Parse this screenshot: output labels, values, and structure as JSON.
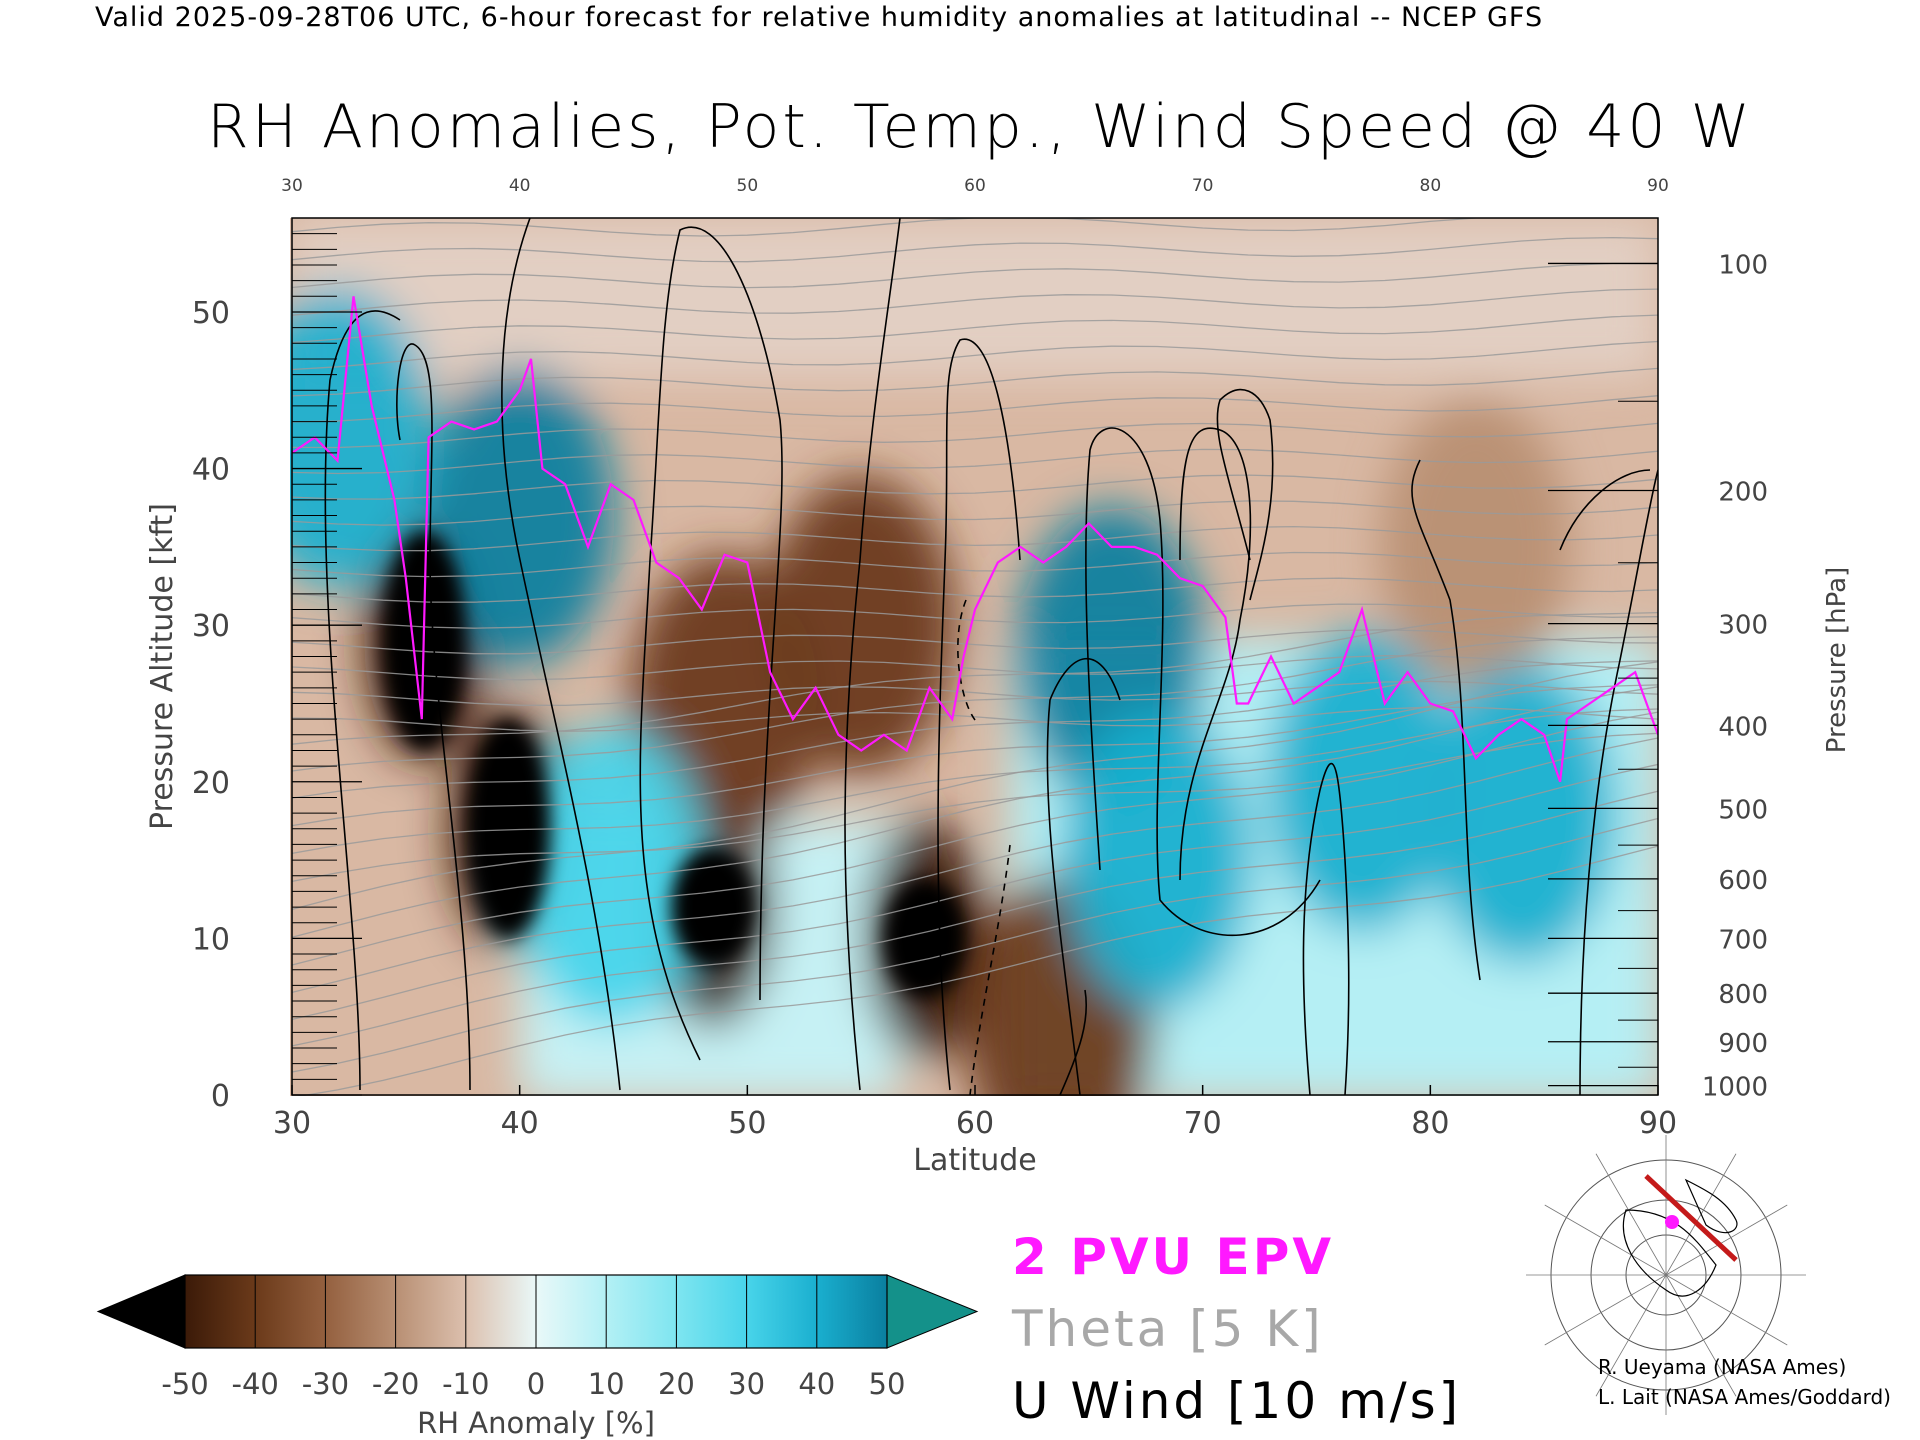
{
  "caption": "Valid 2025-09-28T06 UTC, 6-hour forecast for relative humidity anomalies at latitudinal -- NCEP GFS",
  "title": "RH Anomalies, Pot. Temp., Wind Speed @ 40 W",
  "legend": {
    "epv": "2 PVU EPV",
    "theta": "Theta [5 K]",
    "wind": "U Wind [10 m/s]",
    "colors": {
      "epv": "#ff19ff",
      "theta": "#a8a8a8",
      "wind": "#000000"
    }
  },
  "colorbar": {
    "label": "RH Anomaly [%]",
    "ticks": [
      "-50",
      "-40",
      "-30",
      "-20",
      "-10",
      "0",
      "10",
      "20",
      "30",
      "40",
      "50"
    ],
    "colors": [
      "#000000",
      "#3b1a08",
      "#6b3a1a",
      "#94603f",
      "#b88f73",
      "#dcc0ae",
      "#e9f8f8",
      "#b3f0f5",
      "#7ee5f0",
      "#48d4ea",
      "#1aafcf",
      "#0a7f9f",
      "#14918a"
    ]
  },
  "credits": [
    "R. Ueyama (NASA Ames)",
    "L. Lait (NASA Ames/Goddard)"
  ],
  "chart_data": {
    "type": "heatmap",
    "xlabel": "Latitude",
    "ylabel_left": "Pressure Altitude [kft]",
    "ylabel_right": "Pressure [hPa]",
    "xlim": [
      30,
      90
    ],
    "ylim": [
      0,
      56
    ],
    "x_ticks": [
      "30",
      "40",
      "50",
      "60",
      "70",
      "80",
      "90"
    ],
    "x_tick_values": [
      30,
      40,
      50,
      60,
      70,
      80,
      90
    ],
    "y_ticks": [
      "0",
      "10",
      "20",
      "30",
      "40",
      "50"
    ],
    "y_tick_values": [
      0,
      10,
      20,
      30,
      40,
      50
    ],
    "pressure_ticks": [
      "100",
      "200",
      "300",
      "400",
      "500",
      "600",
      "700",
      "800",
      "900",
      "1000"
    ],
    "pressure_tick_alt_kft": [
      53.1,
      38.6,
      30.1,
      23.6,
      18.3,
      13.8,
      10.0,
      6.5,
      3.4,
      0.6
    ],
    "epv_2pvu_line": [
      [
        30,
        41
      ],
      [
        31,
        42
      ],
      [
        32,
        40.5
      ],
      [
        32.7,
        51
      ],
      [
        33.5,
        44
      ],
      [
        34.5,
        38
      ],
      [
        35,
        33
      ],
      [
        35.7,
        24
      ],
      [
        36,
        42
      ],
      [
        37,
        43
      ],
      [
        38,
        42.5
      ],
      [
        39,
        43
      ],
      [
        40,
        45
      ],
      [
        40.5,
        47
      ],
      [
        41,
        40
      ],
      [
        42,
        39
      ],
      [
        43,
        35
      ],
      [
        44,
        39
      ],
      [
        45,
        38
      ],
      [
        46,
        34
      ],
      [
        47,
        33
      ],
      [
        48,
        31
      ],
      [
        49,
        34.5
      ],
      [
        50,
        34
      ],
      [
        51,
        27
      ],
      [
        52,
        24
      ],
      [
        53,
        26
      ],
      [
        54,
        23
      ],
      [
        55,
        22
      ],
      [
        56,
        23
      ],
      [
        57,
        22
      ],
      [
        58,
        26
      ],
      [
        59,
        24
      ],
      [
        59.5,
        28
      ],
      [
        60,
        31
      ],
      [
        61,
        34
      ],
      [
        62,
        35
      ],
      [
        63,
        34
      ],
      [
        64,
        35
      ],
      [
        65,
        36.5
      ],
      [
        66,
        35
      ],
      [
        67,
        35
      ],
      [
        68,
        34.5
      ],
      [
        69,
        33
      ],
      [
        70,
        32.5
      ],
      [
        71,
        30.5
      ],
      [
        71.5,
        25
      ],
      [
        72,
        25
      ],
      [
        73,
        28
      ],
      [
        74,
        25
      ],
      [
        75,
        26
      ],
      [
        76,
        27
      ],
      [
        77,
        31
      ],
      [
        78,
        25
      ],
      [
        79,
        27
      ],
      [
        80,
        25
      ],
      [
        81,
        24.5
      ],
      [
        82,
        21.5
      ],
      [
        83,
        23
      ],
      [
        84,
        24
      ],
      [
        85,
        23
      ],
      [
        85.7,
        20
      ],
      [
        86,
        24
      ],
      [
        87,
        25
      ],
      [
        88,
        26
      ],
      [
        89,
        27
      ],
      [
        90,
        23
      ]
    ],
    "theta_contours_K": [
      "270",
      "280",
      "290",
      "300",
      "310",
      "320",
      "330",
      "340",
      "350",
      "360",
      "370",
      "380",
      "390",
      "400",
      "410",
      "420"
    ],
    "u_wind_contours_ms": [
      "-10",
      "0",
      "10",
      "20",
      "30"
    ],
    "rh_anomaly_blobs": [
      {
        "lat": 39.5,
        "alt": 17,
        "rh": -50
      },
      {
        "lat": 48.5,
        "alt": 12,
        "rh": -50
      },
      {
        "lat": 57.8,
        "alt": 10,
        "rh": -50
      },
      {
        "lat": 35.8,
        "alt": 29,
        "rh": -50
      },
      {
        "lat": 63.7,
        "alt": 4.5,
        "rh": -45
      },
      {
        "lat": 55,
        "alt": 30,
        "rh": -40
      },
      {
        "lat": 49,
        "alt": 25,
        "rh": -40
      },
      {
        "lat": 82,
        "alt": 35,
        "rh": -25
      },
      {
        "lat": 40,
        "alt": 37,
        "rh": 50
      },
      {
        "lat": 66,
        "alt": 28,
        "rh": 45
      },
      {
        "lat": 68,
        "alt": 15,
        "rh": 40
      },
      {
        "lat": 77,
        "alt": 20,
        "rh": 35
      },
      {
        "lat": 32,
        "alt": 42,
        "rh": 35
      },
      {
        "lat": 84,
        "alt": 18,
        "rh": 35
      },
      {
        "lat": 44,
        "alt": 14,
        "rh": 30
      }
    ]
  }
}
